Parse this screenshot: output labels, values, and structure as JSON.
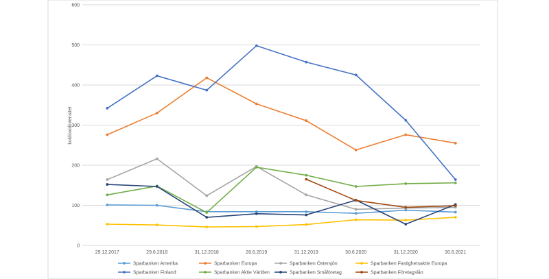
{
  "chart_data": {
    "type": "line",
    "title": "",
    "xlabel": "",
    "ylabel": "koldioxidintensitet",
    "ylim": [
      0,
      600
    ],
    "yticks": [
      0,
      100,
      200,
      300,
      400,
      500,
      600
    ],
    "grid": true,
    "legend_position": "bottom",
    "categories": [
      "29.12.2017",
      "29.6.2018",
      "31.12.2018",
      "28.6.2019",
      "31.12.2019",
      "30.6.2020",
      "31.12.2020",
      "30.6.2021"
    ],
    "series": [
      {
        "name": "Sparbanken Amerika",
        "color": "#5b9bd5",
        "values": [
          101,
          100,
          84,
          84,
          84,
          80,
          88,
          83
        ]
      },
      {
        "name": "Sparbanken Europa",
        "color": "#ed7d31",
        "values": [
          276,
          330,
          418,
          353,
          311,
          238,
          276,
          255
        ]
      },
      {
        "name": "Sparbanken Östersjön",
        "color": "#a5a5a5",
        "values": [
          164,
          216,
          124,
          197,
          126,
          90,
          93,
          95
        ]
      },
      {
        "name": "Sparbanken Fastighetsaktie Europa",
        "color": "#ffc000",
        "values": [
          53,
          51,
          46,
          47,
          52,
          64,
          63,
          70
        ]
      },
      {
        "name": "Sparbanken Finland",
        "color": "#4472c4",
        "values": [
          342,
          423,
          387,
          498,
          457,
          425,
          312,
          164
        ]
      },
      {
        "name": "Sparbanken Aktie Världen",
        "color": "#70ad47",
        "values": [
          126,
          148,
          82,
          195,
          175,
          147,
          154,
          156
        ]
      },
      {
        "name": "Sparbanken Småföretag",
        "color": "#264478",
        "values": [
          152,
          147,
          70,
          79,
          76,
          113,
          53,
          102
        ]
      },
      {
        "name": "Sparbanken Företagslån",
        "color": "#9e480e",
        "values": [
          null,
          null,
          null,
          null,
          165,
          112,
          95,
          99
        ]
      }
    ]
  }
}
